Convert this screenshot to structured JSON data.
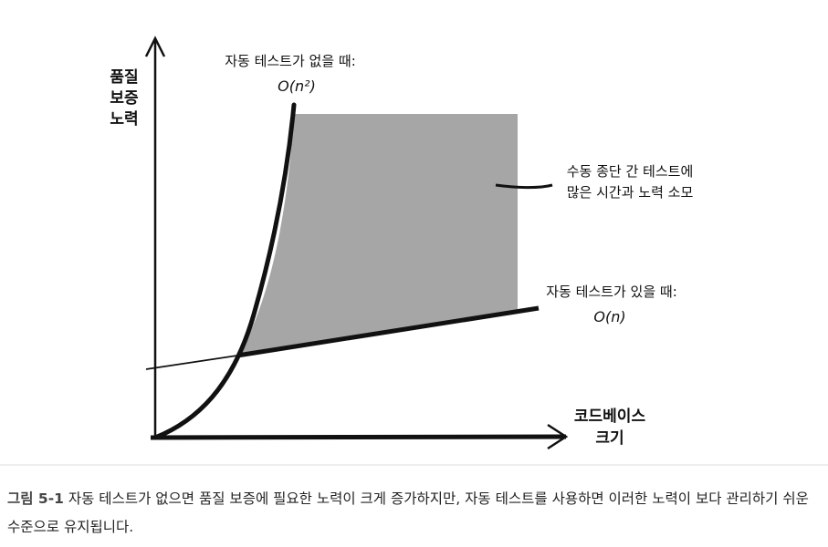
{
  "figure": {
    "y_axis_label": [
      "품질",
      "보증",
      "노력"
    ],
    "x_axis_label": [
      "코드베이스",
      "크기"
    ],
    "without_tests": {
      "label": "자동 테스트가 없을 때:",
      "complexity": "O(n²)"
    },
    "gap_note": [
      "수동 종단 간 테스트에",
      "많은 시간과 노력 소모"
    ],
    "with_tests": {
      "label": "자동 테스트가 있을 때:",
      "complexity": "O(n)"
    }
  },
  "caption": {
    "number": "그림 5-1",
    "text": "자동 테스트가 없으면 품질 보증에 필요한 노력이 크게 증가하지만, 자동 테스트를 사용하면 이러한 노력이 보다 관리하기 쉬운 수준으로 유지됩니다."
  }
}
